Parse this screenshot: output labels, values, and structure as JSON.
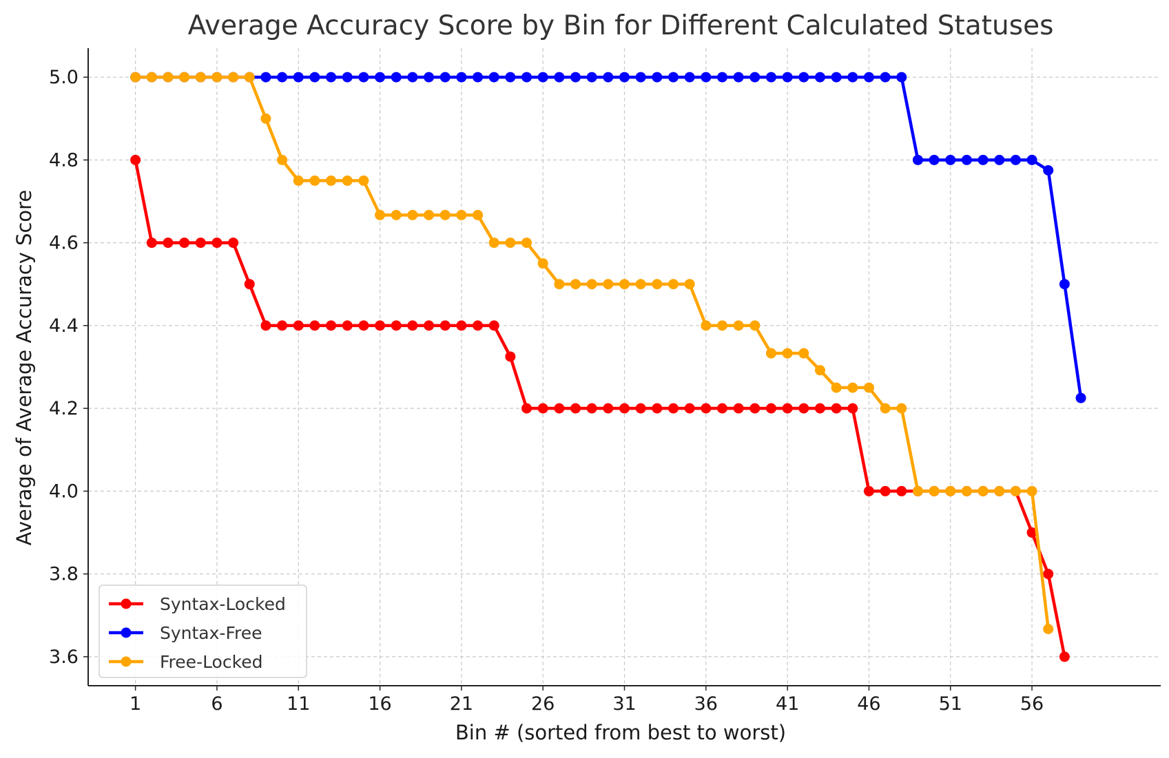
{
  "chart_data": {
    "type": "line",
    "title": "Average Accuracy Score by Bin for Different Calculated Statuses",
    "xlabel": "Bin # (sorted from best to worst)",
    "ylabel": "Average of Average Accuracy Score",
    "xlim": [
      -1.9,
      63.9
    ],
    "ylim": [
      3.53,
      5.07
    ],
    "xticks": [
      1,
      6,
      11,
      16,
      21,
      26,
      31,
      36,
      41,
      46,
      51,
      56
    ],
    "xtick_labels": [
      "1",
      "6",
      "11",
      "16",
      "21",
      "26",
      "31",
      "36",
      "41",
      "46",
      "51",
      "56"
    ],
    "yticks": [
      3.6,
      3.8,
      4.0,
      4.2,
      4.4,
      4.6,
      4.8,
      5.0
    ],
    "ytick_labels": [
      "3.6",
      "3.8",
      "4.0",
      "4.2",
      "4.4",
      "4.6",
      "4.8",
      "5.0"
    ],
    "grid": true,
    "legend_position": "bottom-left",
    "series": [
      {
        "name": "Syntax-Locked",
        "color": "#ff0000",
        "values": [
          4.8,
          4.6,
          4.6,
          4.6,
          4.6,
          4.6,
          4.6,
          4.5,
          4.4,
          4.4,
          4.4,
          4.4,
          4.4,
          4.4,
          4.4,
          4.4,
          4.4,
          4.4,
          4.4,
          4.4,
          4.4,
          4.4,
          4.4,
          4.325,
          4.2,
          4.2,
          4.2,
          4.2,
          4.2,
          4.2,
          4.2,
          4.2,
          4.2,
          4.2,
          4.2,
          4.2,
          4.2,
          4.2,
          4.2,
          4.2,
          4.2,
          4.2,
          4.2,
          4.2,
          4.2,
          4.0,
          4.0,
          4.0,
          4.0,
          4.0,
          4.0,
          4.0,
          4.0,
          4.0,
          4.0,
          3.9,
          3.8,
          3.6
        ]
      },
      {
        "name": "Syntax-Free",
        "color": "#0000ff",
        "values": [
          5.0,
          5.0,
          5.0,
          5.0,
          5.0,
          5.0,
          5.0,
          5.0,
          5.0,
          5.0,
          5.0,
          5.0,
          5.0,
          5.0,
          5.0,
          5.0,
          5.0,
          5.0,
          5.0,
          5.0,
          5.0,
          5.0,
          5.0,
          5.0,
          5.0,
          5.0,
          5.0,
          5.0,
          5.0,
          5.0,
          5.0,
          5.0,
          5.0,
          5.0,
          5.0,
          5.0,
          5.0,
          5.0,
          5.0,
          5.0,
          5.0,
          5.0,
          5.0,
          5.0,
          5.0,
          5.0,
          5.0,
          5.0,
          4.8,
          4.8,
          4.8,
          4.8,
          4.8,
          4.8,
          4.8,
          4.8,
          4.775,
          4.5,
          4.225
        ]
      },
      {
        "name": "Free-Locked",
        "color": "#ffa500",
        "values": [
          5.0,
          5.0,
          5.0,
          5.0,
          5.0,
          5.0,
          5.0,
          5.0,
          4.9,
          4.8,
          4.75,
          4.75,
          4.75,
          4.75,
          4.75,
          4.667,
          4.667,
          4.667,
          4.667,
          4.667,
          4.667,
          4.667,
          4.6,
          4.6,
          4.6,
          4.55,
          4.5,
          4.5,
          4.5,
          4.5,
          4.5,
          4.5,
          4.5,
          4.5,
          4.5,
          4.4,
          4.4,
          4.4,
          4.4,
          4.333,
          4.333,
          4.333,
          4.292,
          4.25,
          4.25,
          4.25,
          4.2,
          4.2,
          4.0,
          4.0,
          4.0,
          4.0,
          4.0,
          4.0,
          4.0,
          4.0,
          3.667
        ]
      }
    ]
  }
}
